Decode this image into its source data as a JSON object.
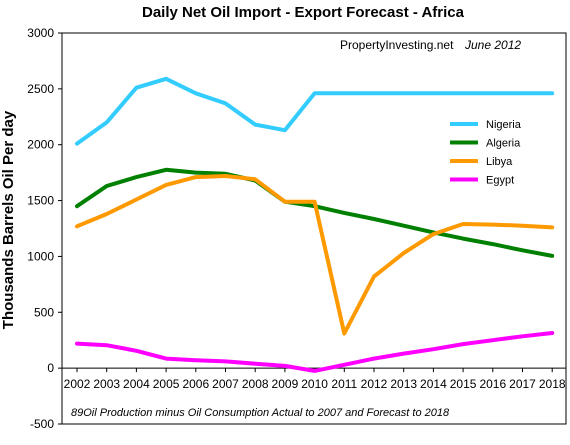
{
  "chart_data": {
    "type": "line",
    "title": "Daily Net Oil Import - Export Forecast - Africa",
    "ylabel": "Thousands Barrels Oil Per day",
    "xlabel": "",
    "credit": "PropertyInvesting.net",
    "credit_date": "June 2012",
    "note": "89Oil Production minus Oil Consumption Actual to 2007 and Forecast to 2018",
    "ylim": [
      -500,
      3000
    ],
    "yticks": [
      -500,
      0,
      500,
      1000,
      1500,
      2000,
      2500,
      3000
    ],
    "categories": [
      "2002",
      "2003",
      "2004",
      "2005",
      "2006",
      "2007",
      "2008",
      "2009",
      "2010",
      "2011",
      "2012",
      "2013",
      "2014",
      "2015",
      "2016",
      "2017",
      "2018"
    ],
    "legend_position": "right",
    "grid": false,
    "series": [
      {
        "name": "Nigeria",
        "color": "#33CCFF",
        "values": [
          2010,
          2200,
          2510,
          2590,
          2460,
          2370,
          2180,
          2130,
          2460,
          2460,
          2460,
          2460,
          2460,
          2460,
          2460,
          2460,
          2460
        ]
      },
      {
        "name": "Algeria",
        "color": "#008000",
        "values": [
          1450,
          1630,
          1710,
          1775,
          1750,
          1740,
          1680,
          1490,
          1450,
          1390,
          1335,
          1275,
          1215,
          1160,
          1110,
          1055,
          1005
        ]
      },
      {
        "name": "Libya",
        "color": "#FF9900",
        "values": [
          1270,
          1380,
          1510,
          1640,
          1710,
          1720,
          1690,
          1490,
          1490,
          310,
          820,
          1030,
          1200,
          1290,
          1285,
          1275,
          1260
        ]
      },
      {
        "name": "Egypt",
        "color": "#FF00FF",
        "values": [
          220,
          205,
          155,
          85,
          70,
          60,
          40,
          20,
          -25,
          30,
          85,
          130,
          170,
          215,
          250,
          285,
          315
        ]
      }
    ]
  }
}
